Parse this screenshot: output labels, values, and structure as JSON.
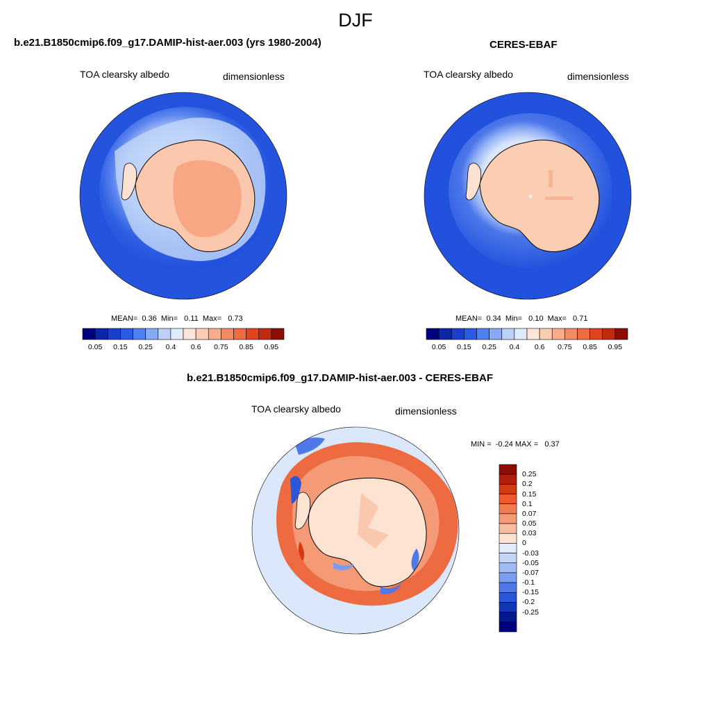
{
  "figure": {
    "title": "DJF"
  },
  "panels": [
    {
      "title": "b.e21.B1850cmip6.f09_g17.DAMIP-hist-aer.003 (yrs 1980-2004)",
      "variable": "TOA clearsky albedo",
      "units": "dimensionless",
      "stats": "MEAN=  0.36  Min=   0.11  Max=   0.73"
    },
    {
      "title": "CERES-EBAF",
      "variable": "TOA clearsky albedo",
      "units": "dimensionless",
      "stats": "MEAN=  0.34  Min=   0.10  Max=   0.71"
    },
    {
      "title": "b.e21.B1850cmip6.f09_g17.DAMIP-hist-aer.003 - CERES-EBAF",
      "variable": "TOA clearsky albedo",
      "units": "dimensionless",
      "stats": "MIN =  -0.24 MAX =   0.37"
    }
  ],
  "colorbar_main": {
    "colors": [
      "#00007f",
      "#0b24a8",
      "#1a3fcf",
      "#2a5ae6",
      "#4f80f2",
      "#86aaf6",
      "#bcd0f8",
      "#e0ebfc",
      "#fde6d8",
      "#fbcdb4",
      "#f8ae8c",
      "#f38c66",
      "#ee6a41",
      "#e0451f",
      "#bf2a10",
      "#8c0c06"
    ],
    "ticks": [
      "0.05",
      "0.15",
      "0.25",
      "0.4",
      "0.6",
      "0.75",
      "0.85",
      "0.95"
    ]
  },
  "colorbar_diff": {
    "colors": [
      "#8c0c06",
      "#b01f0a",
      "#d43a12",
      "#ee5a2c",
      "#f27a4f",
      "#f59a76",
      "#f8bc9e",
      "#fde3d2",
      "#e2ecfb",
      "#c3d6f8",
      "#a1bcf5",
      "#7b9df0",
      "#4f79e8",
      "#2b56d8",
      "#1237b6",
      "#02188c",
      "#00007f"
    ],
    "ticks": [
      "0.25",
      "0.2",
      "0.15",
      "0.1",
      "0.07",
      "0.05",
      "0.03",
      "0",
      "-0.03",
      "-0.05",
      "-0.07",
      "-0.1",
      "-0.15",
      "-0.2",
      "-0.25"
    ]
  }
}
